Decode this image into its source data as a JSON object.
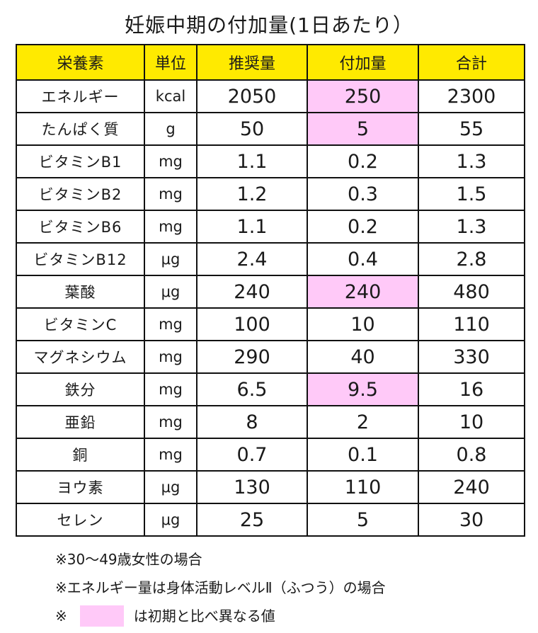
{
  "title": "妊娠中期の付加量(1日あたり）",
  "table": {
    "headers": [
      "栄養素",
      "単位",
      "推奨量",
      "付加量",
      "合計"
    ],
    "rows": [
      {
        "name": "エネルギー",
        "unit": "kcal",
        "recommended": "2050",
        "addition": "250",
        "total": "2300",
        "highlight": true
      },
      {
        "name": "たんぱく質",
        "unit": "g",
        "recommended": "50",
        "addition": "5",
        "total": "55",
        "highlight": true
      },
      {
        "name": "ビタミンB1",
        "unit": "mg",
        "recommended": "1.1",
        "addition": "0.2",
        "total": "1.3",
        "highlight": false
      },
      {
        "name": "ビタミンB2",
        "unit": "mg",
        "recommended": "1.2",
        "addition": "0.3",
        "total": "1.5",
        "highlight": false
      },
      {
        "name": "ビタミンB6",
        "unit": "mg",
        "recommended": "1.1",
        "addition": "0.2",
        "total": "1.3",
        "highlight": false
      },
      {
        "name": "ビタミンB12",
        "unit": "μg",
        "recommended": "2.4",
        "addition": "0.4",
        "total": "2.8",
        "highlight": false
      },
      {
        "name": "葉酸",
        "unit": "μg",
        "recommended": "240",
        "addition": "240",
        "total": "480",
        "highlight": true
      },
      {
        "name": "ビタミンC",
        "unit": "mg",
        "recommended": "100",
        "addition": "10",
        "total": "110",
        "highlight": false
      },
      {
        "name": "マグネシウム",
        "unit": "mg",
        "recommended": "290",
        "addition": "40",
        "total": "330",
        "highlight": false
      },
      {
        "name": "鉄分",
        "unit": "mg",
        "recommended": "6.5",
        "addition": "9.5",
        "total": "16",
        "highlight": true
      },
      {
        "name": "亜鉛",
        "unit": "mg",
        "recommended": "8",
        "addition": "2",
        "total": "10",
        "highlight": false
      },
      {
        "name": "銅",
        "unit": "mg",
        "recommended": "0.7",
        "addition": "0.1",
        "total": "0.8",
        "highlight": false
      },
      {
        "name": "ヨウ素",
        "unit": "μg",
        "recommended": "130",
        "addition": "110",
        "total": "240",
        "highlight": false
      },
      {
        "name": "セレン",
        "unit": "μg",
        "recommended": "25",
        "addition": "5",
        "total": "30",
        "highlight": false
      }
    ]
  },
  "notes": {
    "age": "※30～49歳女性の場合",
    "activity": "※エネルギー量は身体活動レベルⅡ（ふつう）の場合",
    "legend_mark": "※",
    "legend_text": "は初期と比べ異なる値"
  },
  "colors": {
    "header_bg": "#ffea00",
    "highlight_bg": "#ffc9f8"
  }
}
